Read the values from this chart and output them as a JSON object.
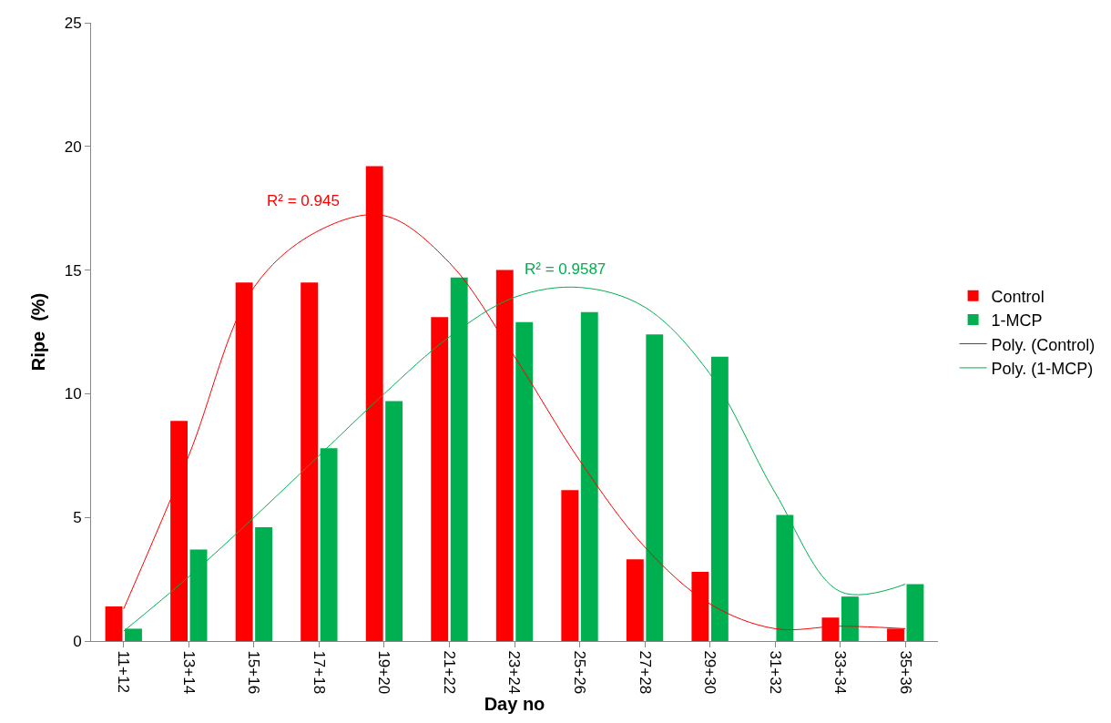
{
  "chart_data": {
    "type": "bar",
    "xlabel": "Day no",
    "ylabel": "Ripe  (%)",
    "categories": [
      "11+12",
      "13+14",
      "15+16",
      "17+18",
      "19+20",
      "21+22",
      "23+24",
      "25+26",
      "27+28",
      "29+30",
      "31+32",
      "33+34",
      "35+36"
    ],
    "series": [
      {
        "name": "Control",
        "color": "#ff0000",
        "values": [
          1.4,
          8.9,
          14.5,
          14.5,
          19.2,
          13.1,
          15.0,
          6.1,
          3.3,
          2.8,
          0,
          0.95,
          0.5
        ]
      },
      {
        "name": "1-MCP",
        "color": "#00b050",
        "values": [
          0.5,
          3.7,
          4.6,
          7.8,
          9.7,
          14.7,
          12.9,
          13.3,
          12.4,
          11.5,
          5.1,
          1.8,
          2.3
        ]
      },
      {
        "name": "Poly. (Control)",
        "type": "line",
        "color": "#ff0000",
        "values": [
          1.3,
          7.5,
          14.3,
          16.6,
          17.2,
          15.3,
          11.5,
          7.3,
          3.8,
          1.5,
          0.5,
          0.6,
          0.5
        ]
      },
      {
        "name": "Poly. (1-MCP)",
        "type": "line",
        "color": "#00b050",
        "values": [
          0.4,
          2.6,
          5.0,
          7.5,
          10.0,
          12.3,
          13.9,
          14.3,
          13.5,
          10.8,
          6.0,
          2.0,
          2.3
        ]
      }
    ],
    "annotations": [
      "R² = 0.945",
      "R² = 0.9587"
    ],
    "ylim": [
      0,
      25
    ],
    "yticks": [
      0,
      5,
      10,
      15,
      20,
      25
    ],
    "legend": "right",
    "marker": "none",
    "line_style": "solid"
  }
}
